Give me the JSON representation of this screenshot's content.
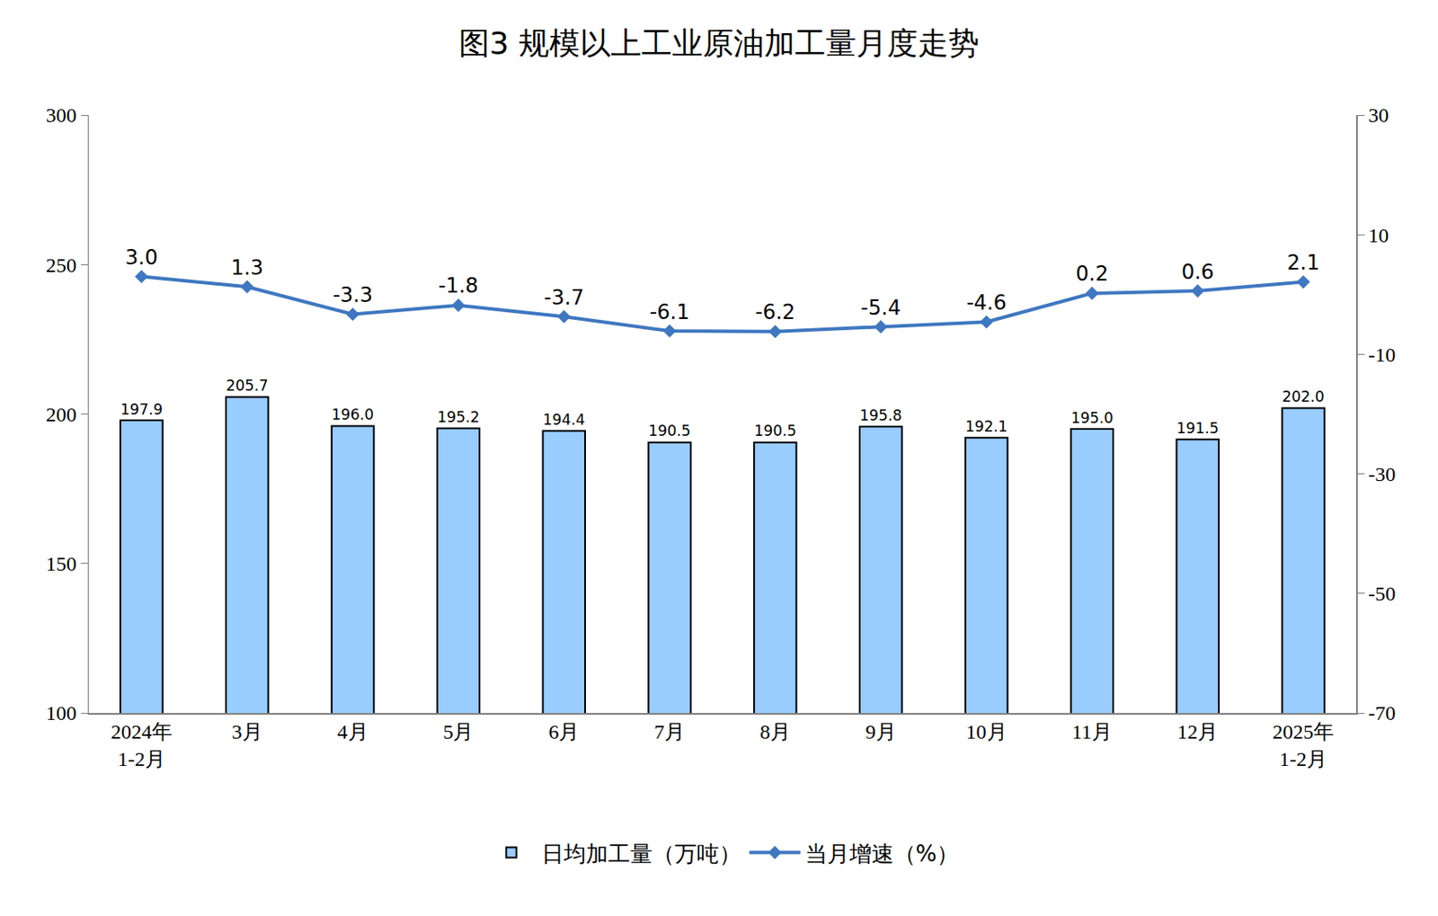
{
  "chart_data": {
    "type": "bar",
    "title": "图3 规模以上工业原油加工量月度走势",
    "categories": [
      "2024年\n1-2月",
      "3月",
      "4月",
      "5月",
      "6月",
      "7月",
      "8月",
      "9月",
      "10月",
      "11月",
      "12月",
      "2025年\n1-2月"
    ],
    "series": [
      {
        "name": "日均加工量（万吨）",
        "type": "bar",
        "color": "#99ccff",
        "values": [
          197.9,
          205.7,
          196.0,
          195.2,
          194.4,
          190.5,
          190.5,
          195.8,
          192.1,
          195.0,
          191.5,
          202.0
        ],
        "value_labels": [
          "197.9",
          "205.7",
          "196.0",
          "195.2",
          "194.4",
          "190.5",
          "190.5",
          "195.8",
          "192.1",
          "195.0",
          "191.5",
          "202.0"
        ]
      },
      {
        "name": "当月增速（%）",
        "type": "line",
        "axis": "y2",
        "color": "#3f77c0",
        "marker": "diamond",
        "values": [
          3.0,
          1.3,
          -3.3,
          -1.8,
          -3.7,
          -6.1,
          -6.2,
          -5.4,
          -4.6,
          0.2,
          0.6,
          2.1
        ],
        "value_labels": [
          "3.0",
          "1.3",
          "-3.3",
          "-1.8",
          "-3.7",
          "-6.1",
          "-6.2",
          "-5.4",
          "-4.6",
          "0.2",
          "0.6",
          "2.1"
        ]
      }
    ],
    "ylim": [
      100,
      300
    ],
    "yticks": [
      100,
      150,
      200,
      250,
      300
    ],
    "y2lim": [
      -70,
      30
    ],
    "y2ticks": [
      -70,
      -50,
      -30,
      -10,
      10,
      30
    ],
    "grid": false,
    "legend": "bottom",
    "data_labels": true
  }
}
